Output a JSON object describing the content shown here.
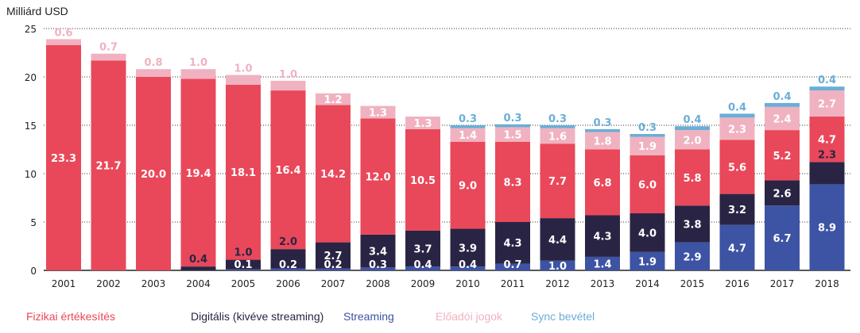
{
  "chart_data": {
    "type": "bar",
    "stacked": true,
    "ylabel": "Milliárd USD",
    "ylim": [
      0,
      25
    ],
    "yticks": [
      0,
      5,
      10,
      15,
      20,
      25
    ],
    "grid": true,
    "legend_position": "bottom",
    "categories": [
      "2001",
      "2002",
      "2003",
      "2004",
      "2005",
      "2006",
      "2007",
      "2008",
      "2009",
      "2010",
      "2011",
      "2012",
      "2013",
      "2014",
      "2015",
      "2016",
      "2017",
      "2018"
    ],
    "series": [
      {
        "name": "Streaming",
        "color": "#3d53a4",
        "values": [
          0,
          0,
          0,
          0,
          0.1,
          0.2,
          0.2,
          0.3,
          0.4,
          0.4,
          0.7,
          1.0,
          1.4,
          1.9,
          2.9,
          4.7,
          6.7,
          8.9
        ]
      },
      {
        "name": "Digitális (kivéve streaming)",
        "color": "#2a2444",
        "values": [
          0,
          0,
          0,
          0.4,
          1.0,
          2.0,
          2.7,
          3.4,
          3.7,
          3.9,
          4.3,
          4.4,
          4.3,
          4.0,
          3.8,
          3.2,
          2.6,
          2.3
        ]
      },
      {
        "name": "Fizikai értékesítés",
        "color": "#e9485a",
        "values": [
          23.3,
          21.7,
          20.0,
          19.4,
          18.1,
          16.4,
          14.2,
          12.0,
          10.5,
          9.0,
          8.3,
          7.7,
          6.8,
          6.0,
          5.8,
          5.6,
          5.2,
          4.7
        ]
      },
      {
        "name": "Előadói jogok",
        "color": "#f0b2c0",
        "values": [
          0.6,
          0.7,
          0.8,
          1.0,
          1.0,
          1.0,
          1.2,
          1.3,
          1.3,
          1.4,
          1.5,
          1.6,
          1.8,
          1.9,
          2.0,
          2.3,
          2.4,
          2.7
        ]
      },
      {
        "name": "Sync bevétel",
        "color": "#6aaed6",
        "values": [
          0,
          0,
          0,
          0,
          0,
          0,
          0,
          0,
          0,
          0.3,
          0.3,
          0.3,
          0.3,
          0.3,
          0.4,
          0.4,
          0.4,
          0.4
        ]
      }
    ]
  },
  "legend": [
    {
      "label": "Fizikai értékesítés",
      "color": "#e9485a"
    },
    {
      "label": "Digitális (kivéve streaming)",
      "color": "#2a2444"
    },
    {
      "label": "Streaming",
      "color": "#3d53a4"
    },
    {
      "label": "Előadói jogok",
      "color": "#f0b2c0"
    },
    {
      "label": "Sync bevétel",
      "color": "#6aaed6"
    }
  ]
}
